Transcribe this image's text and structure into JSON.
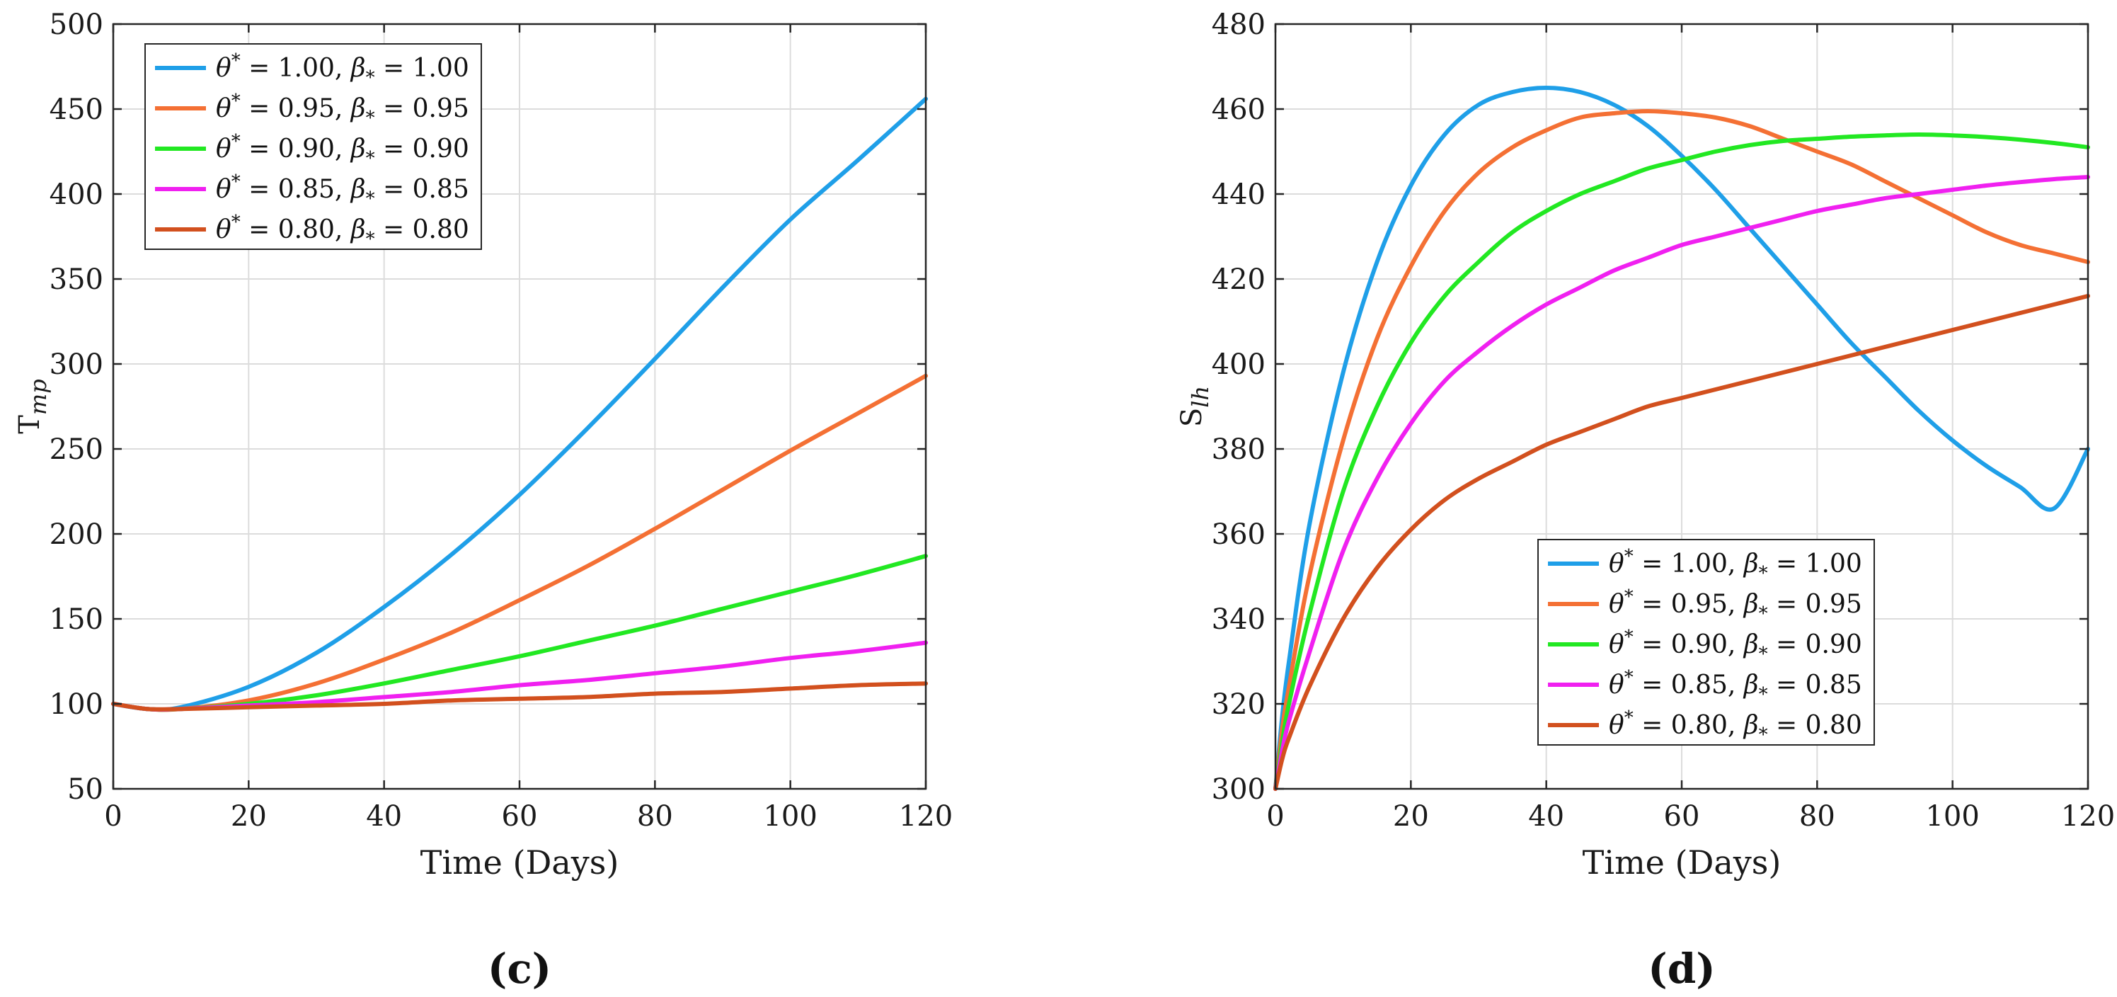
{
  "chart_data": [
    {
      "type": "line",
      "panel_label": "(c)",
      "xlabel": "Time (Days)",
      "ylabel": "T_mp",
      "ylabel_main": "T",
      "ylabel_sub": "mp",
      "xlim": [
        0,
        120
      ],
      "ylim": [
        50,
        500
      ],
      "xticks": [
        0,
        20,
        40,
        60,
        80,
        100,
        120
      ],
      "yticks": [
        50,
        100,
        150,
        200,
        250,
        300,
        350,
        400,
        450,
        500
      ],
      "grid": true,
      "legend_position": "top-left",
      "x": [
        0,
        5,
        10,
        20,
        30,
        40,
        50,
        60,
        70,
        80,
        90,
        100,
        110,
        120
      ],
      "series": [
        {
          "name": "θ* = 1.00, β* = 1.00",
          "color": "#1f9fe8",
          "values": [
            100,
            97,
            98,
            110,
            130,
            157,
            188,
            223,
            262,
            303,
            345,
            385,
            420,
            456
          ]
        },
        {
          "name": "θ* = 0.95, β* = 0.95",
          "color": "#f47034",
          "values": [
            100,
            97,
            97,
            102,
            112,
            126,
            142,
            161,
            181,
            203,
            226,
            249,
            271,
            293
          ]
        },
        {
          "name": "θ* = 0.90, β* = 0.90",
          "color": "#22e822",
          "values": [
            100,
            97,
            97,
            100,
            105,
            112,
            120,
            128,
            137,
            146,
            156,
            166,
            176,
            187
          ]
        },
        {
          "name": "θ* = 0.85, β* = 0.85",
          "color": "#f020f0",
          "values": [
            100,
            97,
            97,
            99,
            101,
            104,
            107,
            111,
            114,
            118,
            122,
            127,
            131,
            136
          ]
        },
        {
          "name": "θ* = 0.80, β* = 0.80",
          "color": "#d2501e",
          "values": [
            100,
            97,
            97,
            98,
            99,
            100,
            102,
            103,
            104,
            106,
            107,
            109,
            111,
            112
          ]
        }
      ]
    },
    {
      "type": "line",
      "panel_label": "(d)",
      "xlabel": "Time (Days)",
      "ylabel": "S_lh",
      "ylabel_main": "S",
      "ylabel_sub": "lh",
      "xlim": [
        0,
        120
      ],
      "ylim": [
        300,
        480
      ],
      "xticks": [
        0,
        20,
        40,
        60,
        80,
        100,
        120
      ],
      "yticks": [
        300,
        320,
        340,
        360,
        380,
        400,
        420,
        440,
        460,
        480
      ],
      "grid": true,
      "legend_position": "bottom-center",
      "x": [
        0,
        1,
        2,
        5,
        10,
        15,
        20,
        25,
        30,
        35,
        40,
        45,
        50,
        55,
        60,
        65,
        70,
        75,
        80,
        85,
        90,
        95,
        100,
        105,
        110,
        115,
        120
      ],
      "series": [
        {
          "name": "θ* = 1.00, β* = 1.00",
          "color": "#1f9fe8",
          "values": [
            300,
            317,
            330,
            362,
            398,
            424,
            442,
            454,
            461,
            464,
            465,
            464,
            461,
            456,
            449,
            441,
            432,
            423,
            414,
            405,
            397,
            389,
            382,
            376,
            371,
            366,
            380
          ]
        },
        {
          "name": "θ* = 0.95, β* = 0.95",
          "color": "#f47034",
          "values": [
            300,
            314,
            324,
            350,
            382,
            406,
            423,
            436,
            445,
            451,
            455,
            458,
            459,
            459.5,
            459,
            458,
            456,
            453,
            450,
            447,
            443,
            439,
            435,
            431,
            428,
            426,
            424
          ]
        },
        {
          "name": "θ* = 0.90, β* = 0.90",
          "color": "#22e822",
          "values": [
            300,
            311,
            320,
            341,
            370,
            390,
            405,
            416,
            424,
            431,
            436,
            440,
            443,
            446,
            448,
            450,
            451.5,
            452.5,
            453,
            453.5,
            453.8,
            454,
            453.8,
            453.4,
            452.8,
            452,
            451
          ]
        },
        {
          "name": "θ* = 0.85, β* = 0.85",
          "color": "#f020f0",
          "values": [
            300,
            309,
            316,
            332,
            356,
            373,
            386,
            396,
            403,
            409,
            414,
            418,
            422,
            425,
            428,
            430,
            432,
            434,
            436,
            437.5,
            439,
            440,
            441,
            442,
            442.8,
            443.5,
            444
          ]
        },
        {
          "name": "θ* = 0.80, β* = 0.80",
          "color": "#d2501e",
          "values": [
            300,
            307,
            312,
            324,
            340,
            352,
            361,
            368,
            373,
            377,
            381,
            384,
            387,
            390,
            392,
            394,
            396,
            398,
            400,
            402,
            404,
            406,
            408,
            410,
            412,
            414,
            416
          ]
        }
      ]
    }
  ]
}
